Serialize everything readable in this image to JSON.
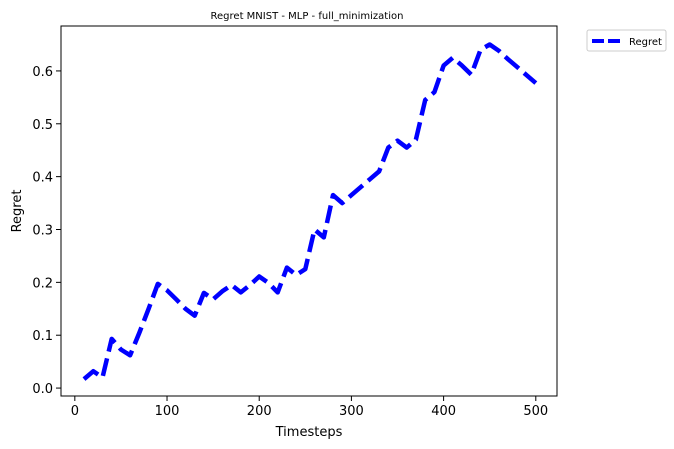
{
  "chart_data": {
    "type": "line",
    "title": "Regret MNIST - MLP - full_minimization",
    "xlabel": "Timesteps",
    "ylabel": "Regret",
    "xlim": [
      -15,
      523
    ],
    "ylim": [
      -0.015,
      0.685
    ],
    "xticks": [
      0,
      100,
      200,
      300,
      400,
      500
    ],
    "yticks": [
      0.0,
      0.1,
      0.2,
      0.3,
      0.4,
      0.5,
      0.6
    ],
    "grid": false,
    "legend_position": "outside-top-right",
    "series": [
      {
        "name": "Regret",
        "color": "#0000ff",
        "style": "dashed",
        "x": [
          10,
          20,
          30,
          40,
          50,
          60,
          70,
          80,
          90,
          100,
          110,
          120,
          130,
          140,
          150,
          160,
          170,
          180,
          190,
          200,
          210,
          220,
          230,
          240,
          250,
          260,
          270,
          280,
          290,
          300,
          310,
          320,
          330,
          340,
          350,
          360,
          370,
          380,
          390,
          400,
          410,
          420,
          430,
          440,
          450,
          460,
          470,
          480,
          490,
          500
        ],
        "y": [
          0.017,
          0.032,
          0.02,
          0.093,
          0.073,
          0.062,
          0.105,
          0.15,
          0.197,
          0.185,
          0.168,
          0.15,
          0.137,
          0.18,
          0.168,
          0.183,
          0.195,
          0.181,
          0.195,
          0.211,
          0.199,
          0.181,
          0.228,
          0.214,
          0.225,
          0.3,
          0.285,
          0.365,
          0.35,
          0.365,
          0.38,
          0.395,
          0.41,
          0.455,
          0.468,
          0.455,
          0.47,
          0.545,
          0.56,
          0.61,
          0.625,
          0.61,
          0.593,
          0.64,
          0.65,
          0.638,
          0.622,
          0.607,
          0.592,
          0.577
        ]
      }
    ]
  }
}
